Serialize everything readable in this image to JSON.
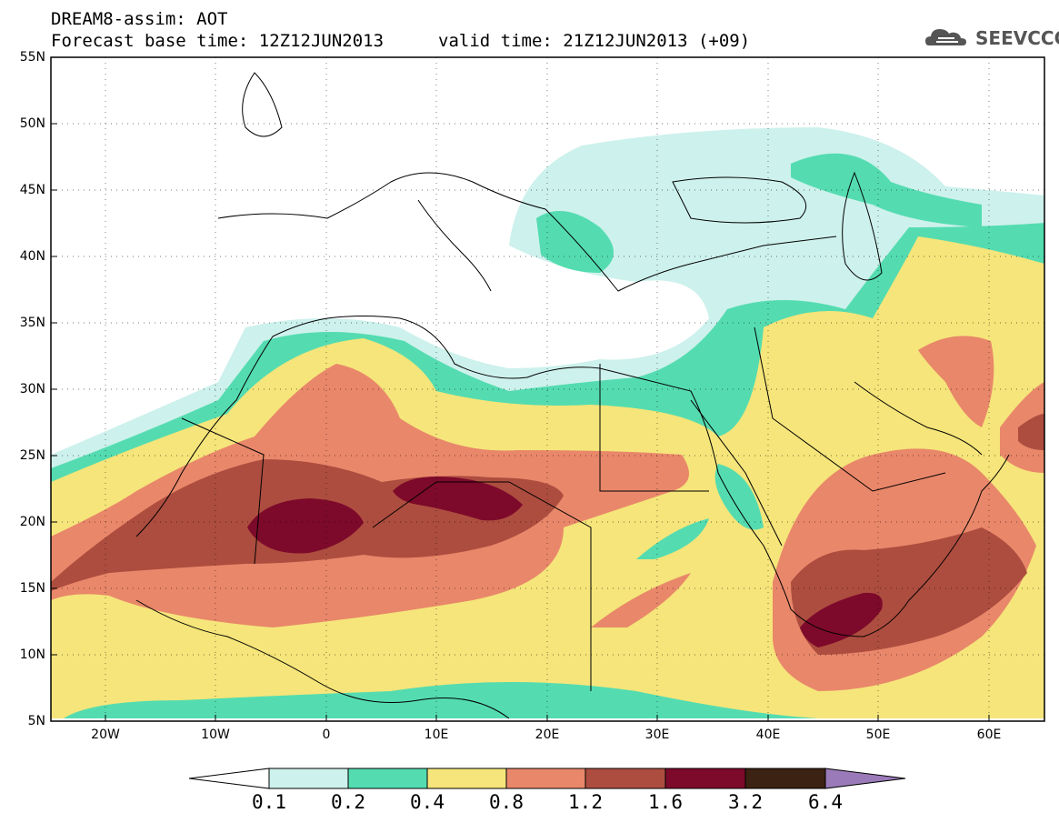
{
  "title": {
    "line1": "DREAM8-assim: AOT",
    "line2": "Forecast base time: 12Z12JUN2013",
    "line3": "valid time: 21Z12JUN2013 (+09)"
  },
  "logo": {
    "text": "SEEVCCC",
    "icon": "cloud-icon"
  },
  "axes": {
    "lat_labels": [
      "55N",
      "50N",
      "45N",
      "40N",
      "35N",
      "30N",
      "25N",
      "20N",
      "15N",
      "10N",
      "5N"
    ],
    "lon_labels": [
      "20W",
      "10W",
      "0",
      "10E",
      "20E",
      "30E",
      "40E",
      "50E",
      "60E"
    ]
  },
  "colorbar": {
    "labels": [
      "0.1",
      "0.2",
      "0.4",
      "0.8",
      "1.2",
      "1.6",
      "3.2",
      "6.4"
    ],
    "colors": [
      "#ffffff",
      "#cdf1ec",
      "#54dcb0",
      "#f5e57a",
      "#e9876a",
      "#ad4d3f",
      "#7d0a2b",
      "#3b2212",
      "#9a7ab8"
    ]
  }
}
